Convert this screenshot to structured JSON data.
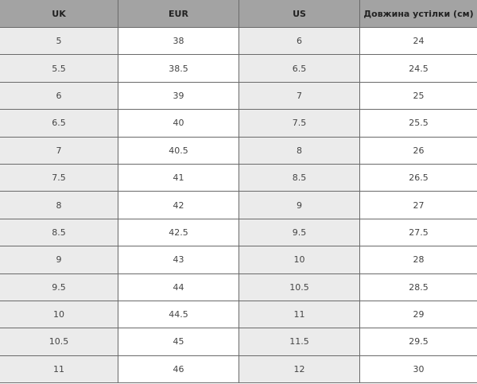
{
  "headers": [
    "UK",
    "EUR",
    "US",
    "Довжина устілки (см)"
  ],
  "rows": [
    [
      "5",
      "38",
      "6",
      "24"
    ],
    [
      "5.5",
      "38.5",
      "6.5",
      "24.5"
    ],
    [
      "6",
      "39",
      "7",
      "25"
    ],
    [
      "6.5",
      "40",
      "7.5",
      "25.5"
    ],
    [
      "7",
      "40.5",
      "8",
      "26"
    ],
    [
      "7.5",
      "41",
      "8.5",
      "26.5"
    ],
    [
      "8",
      "42",
      "9",
      "27"
    ],
    [
      "8.5",
      "42.5",
      "9.5",
      "27.5"
    ],
    [
      "9",
      "43",
      "10",
      "28"
    ],
    [
      "9.5",
      "44",
      "10.5",
      "28.5"
    ],
    [
      "10",
      "44.5",
      "11",
      "29"
    ],
    [
      "10.5",
      "45",
      "11.5",
      "29.5"
    ],
    [
      "11",
      "46",
      "12",
      "30"
    ]
  ]
}
